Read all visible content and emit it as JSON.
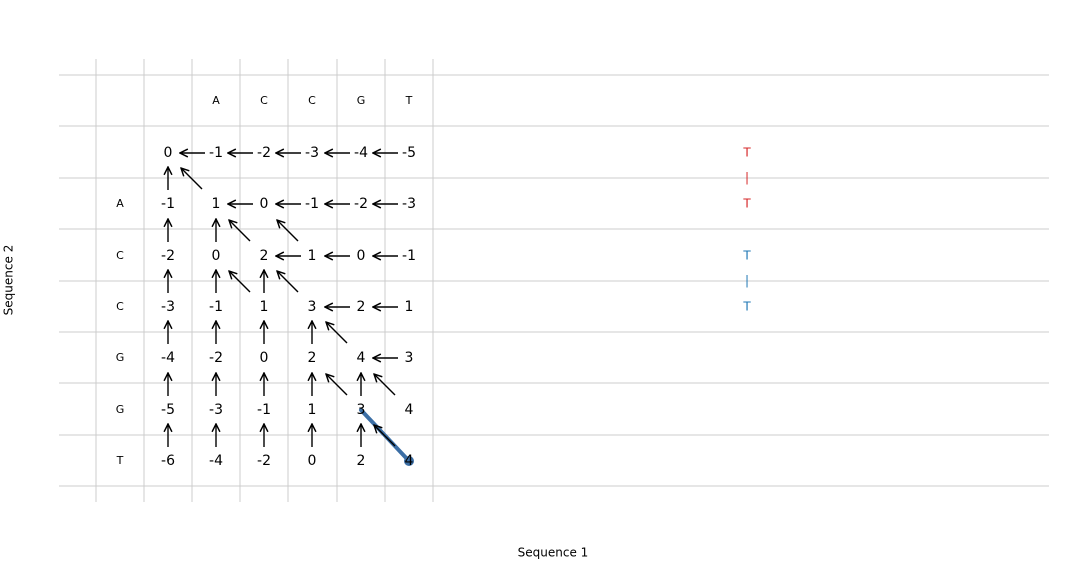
{
  "column_headers": [
    "A",
    "C",
    "C",
    "G",
    "T"
  ],
  "row_headers": [
    "A",
    "C",
    "C",
    "G",
    "G",
    "T"
  ],
  "matrix": [
    [
      0,
      -1,
      -2,
      -3,
      -4,
      -5
    ],
    [
      -1,
      1,
      0,
      -1,
      -2,
      -3
    ],
    [
      -2,
      0,
      2,
      1,
      0,
      -1
    ],
    [
      -3,
      -1,
      1,
      3,
      2,
      1
    ],
    [
      -4,
      -2,
      0,
      2,
      4,
      3
    ],
    [
      -5,
      -3,
      -1,
      1,
      3,
      4
    ],
    [
      -6,
      -4,
      -2,
      0,
      2,
      4
    ]
  ],
  "alignment": [
    {
      "top": "T",
      "link": "|",
      "bottom": "T",
      "color": "#d62728"
    },
    {
      "top": "T",
      "link": "|",
      "bottom": "T",
      "color": "#1f77b4"
    }
  ],
  "path_color": "#3b6ea5",
  "x_label": "Sequence 1",
  "y_label": "Sequence 2"
}
